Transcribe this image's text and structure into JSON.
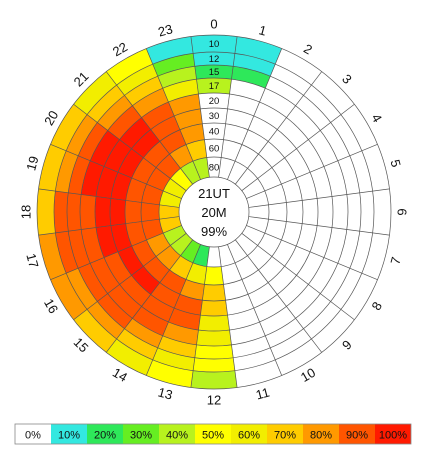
{
  "chart_data": {
    "type": "heatmap",
    "layout": "polar",
    "center_labels": [
      "21UT",
      "20M",
      "99%"
    ],
    "hour_labels": [
      "0",
      "1",
      "2",
      "3",
      "4",
      "5",
      "6",
      "7",
      "8",
      "9",
      "10",
      "11",
      "12",
      "13",
      "14",
      "15",
      "16",
      "17",
      "18",
      "19",
      "20",
      "21",
      "22",
      "23"
    ],
    "ring_labels": [
      "80",
      "60",
      "40",
      "30",
      "20",
      "17",
      "15",
      "12",
      "10"
    ],
    "legend": {
      "labels": [
        "0%",
        "10%",
        "20%",
        "30%",
        "40%",
        "50%",
        "60%",
        "70%",
        "80%",
        "90%",
        "100%"
      ],
      "colors": [
        "#ffffff",
        "#33e8e0",
        "#2ee85a",
        "#66ee22",
        "#b8f21e",
        "#ffff00",
        "#f2ee00",
        "#ffcc00",
        "#ff9900",
        "#ff5500",
        "#ff1a00"
      ]
    },
    "values_pct": [
      [
        0,
        0,
        0,
        0,
        0,
        0,
        0,
        0,
        0,
        0,
        0,
        0,
        0,
        20,
        30,
        40,
        40,
        70,
        70,
        60,
        60,
        50,
        40,
        40
      ],
      [
        0,
        0,
        0,
        0,
        0,
        0,
        0,
        0,
        0,
        0,
        0,
        0,
        50,
        60,
        70,
        80,
        80,
        90,
        90,
        90,
        90,
        90,
        80,
        70
      ],
      [
        0,
        0,
        0,
        0,
        0,
        0,
        0,
        0,
        0,
        0,
        0,
        0,
        70,
        80,
        90,
        90,
        90,
        90,
        90,
        90,
        90,
        90,
        90,
        80
      ],
      [
        0,
        0,
        0,
        0,
        0,
        0,
        0,
        0,
        0,
        0,
        0,
        0,
        70,
        90,
        90,
        100,
        100,
        100,
        100,
        100,
        100,
        100,
        90,
        80
      ],
      [
        0,
        0,
        0,
        0,
        0,
        0,
        0,
        0,
        0,
        0,
        0,
        0,
        60,
        90,
        90,
        90,
        90,
        100,
        100,
        100,
        100,
        100,
        90,
        80
      ],
      [
        40,
        0,
        0,
        0,
        0,
        0,
        0,
        0,
        0,
        0,
        0,
        0,
        60,
        80,
        90,
        90,
        90,
        90,
        90,
        100,
        100,
        90,
        80,
        60
      ],
      [
        20,
        20,
        0,
        0,
        0,
        0,
        0,
        0,
        0,
        0,
        0,
        0,
        50,
        70,
        80,
        90,
        90,
        90,
        90,
        90,
        90,
        80,
        70,
        40
      ],
      [
        10,
        10,
        0,
        0,
        0,
        0,
        0,
        0,
        0,
        0,
        0,
        0,
        50,
        60,
        70,
        80,
        80,
        90,
        90,
        80,
        80,
        70,
        60,
        30
      ],
      [
        10,
        10,
        0,
        0,
        0,
        0,
        0,
        0,
        0,
        0,
        0,
        0,
        40,
        50,
        60,
        70,
        80,
        80,
        70,
        70,
        70,
        60,
        50,
        10
      ]
    ]
  }
}
